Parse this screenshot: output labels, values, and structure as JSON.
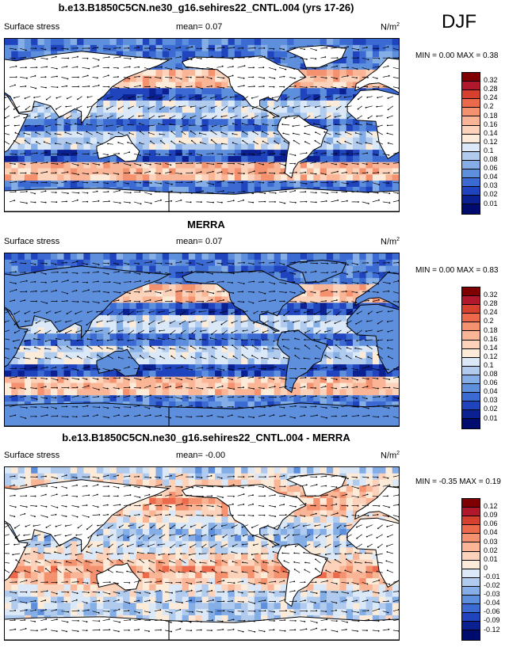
{
  "season": "DJF",
  "panels": [
    {
      "title": "b.e13.B1850C5CN.ne30_g16.sehires22_CNTL.004 (yrs 17-26)",
      "variable": "Surface stress",
      "mean_label": "mean=",
      "mean_value": "0.07",
      "units": "N/m",
      "units_exp": "2",
      "minmax": "MIN =  0.00 MAX =  0.38",
      "colorbar": [
        "0.32",
        "0.28",
        "0.24",
        "0.2",
        "0.18",
        "0.16",
        "0.14",
        "0.12",
        "0.1",
        "0.08",
        "0.06",
        "0.04",
        "0.03",
        "0.02",
        "0.01"
      ]
    },
    {
      "title": "MERRA",
      "variable": "Surface stress",
      "mean_label": "mean=",
      "mean_value": "0.07",
      "units": "N/m",
      "units_exp": "2",
      "minmax": "MIN =  0.00 MAX =  0.83",
      "colorbar": [
        "0.32",
        "0.28",
        "0.24",
        "0.2",
        "0.18",
        "0.16",
        "0.14",
        "0.12",
        "0.1",
        "0.08",
        "0.06",
        "0.04",
        "0.03",
        "0.02",
        "0.01"
      ]
    },
    {
      "title": "b.e13.B1850C5CN.ne30_g16.sehires22_CNTL.004 - MERRA",
      "variable": "Surface stress",
      "mean_label": "mean=",
      "mean_value": "-0.00",
      "units": "N/m",
      "units_exp": "2",
      "minmax": "MIN = -0.35 MAX =  0.19",
      "colorbar": [
        "0.12",
        "0.09",
        "0.06",
        "0.04",
        "0.03",
        "0.02",
        "0.01",
        "0",
        "-0.01",
        "-0.02",
        "-0.03",
        "-0.04",
        "-0.06",
        "-0.09",
        "-0.12"
      ]
    }
  ],
  "colors": {
    "scale": [
      "#7f0000",
      "#b2182b",
      "#d6402f",
      "#ec6a4b",
      "#f4916e",
      "#f9b596",
      "#fcd2bb",
      "#fdebd9",
      "#dbe8f7",
      "#b0cbee",
      "#86aee6",
      "#5e8fdd",
      "#3a6ad2",
      "#1f44bd",
      "#0b2192",
      "#000b6e"
    ],
    "land": "#ffffff",
    "coast": "#000000"
  }
}
